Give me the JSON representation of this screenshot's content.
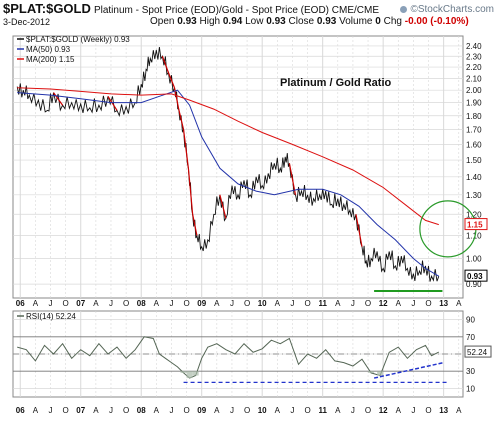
{
  "header": {
    "symbol": "$PLAT:$GOLD",
    "description": "Platinum  - Spot Price (EOD)/Gold - Spot Price (EOD)  CME/CME",
    "watermark": "©StockCharts.com",
    "date": "3-Dec-2012",
    "open_label": "Open",
    "open": "0.93",
    "high_label": "High",
    "high": "0.94",
    "low_label": "Low",
    "low": "0.93",
    "close_label": "Close",
    "close": "0.93",
    "volume_label": "Volume",
    "volume": "0",
    "chg_label": "Chg",
    "chg": "-0.00 (-0.10%)"
  },
  "colors": {
    "price": "#111111",
    "price_down": "#cc0000",
    "ma50": "#2233aa",
    "ma200": "#dd1111",
    "rsi": "#556655",
    "rsi_fill": "#aabbaa",
    "trend_support": "#1f9a1f",
    "trend_rsi": "#2233cc",
    "ellipse": "#2a9a2a",
    "grid": "#d8d8d8"
  },
  "chart_data": [
    {
      "type": "line",
      "title": "Platinum / Gold Ratio",
      "legend": [
        "$PLAT:$GOLD (Weekly) 0.93",
        "MA(50) 0.93",
        "MA(200) 1.15"
      ],
      "legend_position": "top-left",
      "y_scale": "log",
      "ylim": [
        0.85,
        2.5
      ],
      "y_ticks": [
        "0.90",
        "1.00",
        "1.10",
        "1.20",
        "1.30",
        "1.40",
        "1.50",
        "1.60",
        "1.70",
        "1.80",
        "1.90",
        "2.00",
        "2.10",
        "2.20",
        "2.30",
        "2.40"
      ],
      "xlim": [
        2005.88,
        2013.32
      ],
      "x_tick_labels": [
        "06",
        "A",
        "J",
        "O",
        "07",
        "A",
        "J",
        "O",
        "08",
        "A",
        "J",
        "O",
        "09",
        "A",
        "J",
        "O",
        "10",
        "A",
        "J",
        "O",
        "11",
        "A",
        "J",
        "O",
        "12",
        "A",
        "J",
        "O",
        "13",
        "A",
        "J"
      ],
      "grid": true,
      "last_value_labels": [
        "1.15",
        "0.93"
      ],
      "series": [
        {
          "name": "$PLAT:$GOLD (Weekly)",
          "x": [
            2005.95,
            2006.05,
            2006.15,
            2006.3,
            2006.45,
            2006.55,
            2006.7,
            2006.85,
            2007.0,
            2007.15,
            2007.3,
            2007.45,
            2007.6,
            2007.75,
            2007.9,
            2008.0,
            2008.08,
            2008.15,
            2008.25,
            2008.35,
            2008.45,
            2008.55,
            2008.62,
            2008.7,
            2008.78,
            2008.85,
            2008.92,
            2009.0,
            2009.1,
            2009.2,
            2009.3,
            2009.4,
            2009.5,
            2009.6,
            2009.7,
            2009.8,
            2009.9,
            2010.0,
            2010.1,
            2010.2,
            2010.3,
            2010.38,
            2010.45,
            2010.55,
            2010.65,
            2010.75,
            2010.85,
            2010.95,
            2011.05,
            2011.15,
            2011.25,
            2011.35,
            2011.45,
            2011.55,
            2011.65,
            2011.72,
            2011.8,
            2011.9,
            2012.0,
            2012.1,
            2012.2,
            2012.3,
            2012.4,
            2012.5,
            2012.6,
            2012.7,
            2012.8,
            2012.92
          ],
          "values": [
            2.03,
            2.0,
            1.96,
            1.92,
            1.84,
            1.98,
            1.88,
            1.9,
            1.89,
            1.86,
            1.88,
            1.95,
            1.84,
            1.87,
            1.9,
            2.05,
            2.18,
            2.28,
            2.36,
            2.3,
            2.15,
            2.02,
            1.85,
            1.7,
            1.45,
            1.2,
            1.1,
            1.05,
            1.08,
            1.2,
            1.3,
            1.18,
            1.35,
            1.3,
            1.38,
            1.3,
            1.4,
            1.35,
            1.42,
            1.48,
            1.45,
            1.52,
            1.48,
            1.3,
            1.32,
            1.3,
            1.28,
            1.3,
            1.32,
            1.25,
            1.28,
            1.25,
            1.22,
            1.2,
            1.05,
            0.99,
            1.0,
            1.03,
            0.96,
            1.03,
            0.97,
            1.01,
            0.96,
            0.94,
            0.95,
            0.97,
            0.93,
            0.93
          ]
        },
        {
          "name": "MA(50)",
          "x": [
            2005.95,
            2006.5,
            2007.0,
            2007.5,
            2008.0,
            2008.3,
            2008.6,
            2008.8,
            2009.0,
            2009.3,
            2009.6,
            2009.9,
            2010.2,
            2010.6,
            2011.0,
            2011.3,
            2011.6,
            2011.9,
            2012.2,
            2012.5,
            2012.7,
            2012.92
          ],
          "values": [
            1.98,
            1.96,
            1.93,
            1.9,
            1.9,
            1.95,
            2.0,
            1.88,
            1.65,
            1.45,
            1.36,
            1.32,
            1.3,
            1.33,
            1.33,
            1.3,
            1.24,
            1.15,
            1.08,
            1.0,
            0.96,
            0.93
          ]
        },
        {
          "name": "MA(200)",
          "x": [
            2005.95,
            2006.5,
            2007.0,
            2007.5,
            2008.0,
            2008.5,
            2008.8,
            2009.2,
            2009.6,
            2010.0,
            2010.5,
            2011.0,
            2011.5,
            2012.0,
            2012.4,
            2012.7,
            2012.92
          ],
          "values": [
            2.02,
            2.01,
            1.99,
            1.97,
            1.96,
            1.97,
            1.92,
            1.85,
            1.76,
            1.68,
            1.6,
            1.52,
            1.44,
            1.34,
            1.24,
            1.17,
            1.15
          ]
        }
      ]
    },
    {
      "type": "line",
      "legend": [
        "RSI(14) 52.24"
      ],
      "legend_position": "top-left",
      "ylim": [
        0,
        100
      ],
      "y_ticks": [
        "10",
        "30",
        "50",
        "70",
        "90"
      ],
      "reference_lines": [
        30,
        50,
        70
      ],
      "last_value_label": "52.24",
      "grid": true,
      "series": [
        {
          "name": "RSI(14)",
          "x": [
            2005.95,
            2006.1,
            2006.25,
            2006.4,
            2006.55,
            2006.7,
            2006.85,
            2007.0,
            2007.15,
            2007.3,
            2007.45,
            2007.6,
            2007.75,
            2007.9,
            2008.05,
            2008.2,
            2008.3,
            2008.4,
            2008.5,
            2008.6,
            2008.7,
            2008.8,
            2008.9,
            2009.0,
            2009.1,
            2009.25,
            2009.4,
            2009.55,
            2009.7,
            2009.85,
            2010.0,
            2010.15,
            2010.3,
            2010.45,
            2010.6,
            2010.75,
            2010.9,
            2011.05,
            2011.2,
            2011.35,
            2011.5,
            2011.65,
            2011.8,
            2011.95,
            2012.1,
            2012.25,
            2012.4,
            2012.55,
            2012.7,
            2012.8,
            2012.92
          ],
          "values": [
            58,
            55,
            42,
            60,
            50,
            62,
            45,
            55,
            48,
            62,
            50,
            58,
            45,
            55,
            70,
            68,
            50,
            45,
            40,
            35,
            28,
            22,
            25,
            45,
            58,
            62,
            55,
            50,
            62,
            52,
            56,
            66,
            62,
            68,
            38,
            50,
            45,
            55,
            42,
            40,
            36,
            44,
            28,
            25,
            52,
            58,
            45,
            55,
            60,
            48,
            52.24
          ]
        }
      ]
    }
  ]
}
